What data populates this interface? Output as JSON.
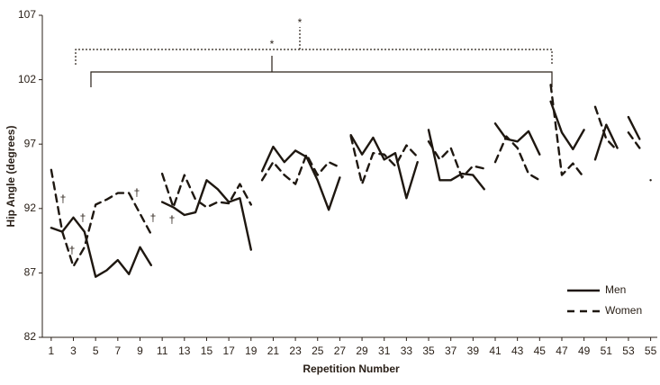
{
  "chart_data": {
    "type": "line",
    "x_label": "Repetition Number",
    "y_label": "Hip Angle (degrees)",
    "x": [
      1,
      2,
      3,
      4,
      5,
      6,
      7,
      8,
      9,
      10,
      null,
      11,
      12,
      13,
      14,
      15,
      16,
      17,
      18,
      19,
      null,
      20,
      21,
      22,
      23,
      24,
      25,
      26,
      27,
      null,
      28,
      29,
      30,
      31,
      32,
      33,
      34,
      null,
      35,
      36,
      37,
      38,
      39,
      40,
      null,
      41,
      42,
      43,
      44,
      45,
      null,
      46,
      47,
      48,
      49,
      null,
      50,
      51,
      52,
      null,
      53,
      54,
      null,
      55
    ],
    "series": [
      {
        "name": "Men",
        "color": "#1e1710",
        "dash": false,
        "values": [
          90.5,
          90.2,
          91.3,
          90.2,
          86.7,
          87.2,
          88.0,
          86.9,
          89.0,
          87.6,
          null,
          92.5,
          92.1,
          91.5,
          91.7,
          94.2,
          93.5,
          92.5,
          92.8,
          88.8,
          null,
          94.9,
          96.8,
          95.6,
          96.5,
          96.0,
          94.2,
          91.9,
          94.4,
          null,
          97.7,
          96.2,
          97.5,
          95.8,
          96.3,
          92.8,
          95.6,
          null,
          98.1,
          94.2,
          94.2,
          94.7,
          94.6,
          93.5,
          null,
          98.6,
          97.4,
          97.2,
          98.0,
          96.2,
          null,
          100.3,
          97.9,
          96.6,
          98.1,
          null,
          95.8,
          98.5,
          96.7,
          null,
          99.1,
          97.4,
          null,
          94.2
        ]
      },
      {
        "name": "Women",
        "color": "#1e1710",
        "dash": true,
        "values": [
          95.0,
          90.2,
          87.5,
          89.0,
          92.3,
          92.7,
          93.2,
          93.2,
          91.6,
          90.0,
          null,
          94.7,
          92.1,
          94.6,
          92.7,
          92.1,
          92.5,
          92.4,
          93.9,
          92.3,
          null,
          94.2,
          95.6,
          94.6,
          93.9,
          96.2,
          94.6,
          95.6,
          95.2,
          null,
          97.6,
          93.9,
          96.3,
          96.2,
          95.3,
          96.9,
          96.0,
          null,
          97.2,
          95.8,
          96.7,
          94.4,
          95.3,
          95.1,
          null,
          95.6,
          97.6,
          96.7,
          94.7,
          94.2,
          null,
          101.6,
          94.6,
          95.5,
          94.4,
          null,
          99.9,
          97.4,
          96.5,
          null,
          97.9,
          96.7,
          null,
          93.4
        ]
      }
    ],
    "xlim": [
      0.2,
      55.6
    ],
    "xticks": [
      1,
      3,
      5,
      7,
      9,
      11,
      13,
      15,
      17,
      19,
      21,
      23,
      25,
      27,
      29,
      31,
      33,
      35,
      37,
      39,
      41,
      43,
      45,
      47,
      49,
      51,
      53,
      55
    ],
    "ylim": [
      82,
      107
    ],
    "yticks": [
      82,
      87,
      92,
      97,
      102,
      107
    ],
    "grid": false,
    "legend": "lower right",
    "annotations": [
      "†",
      "†",
      "†",
      "†",
      "†",
      "†",
      "*",
      "*"
    ]
  }
}
